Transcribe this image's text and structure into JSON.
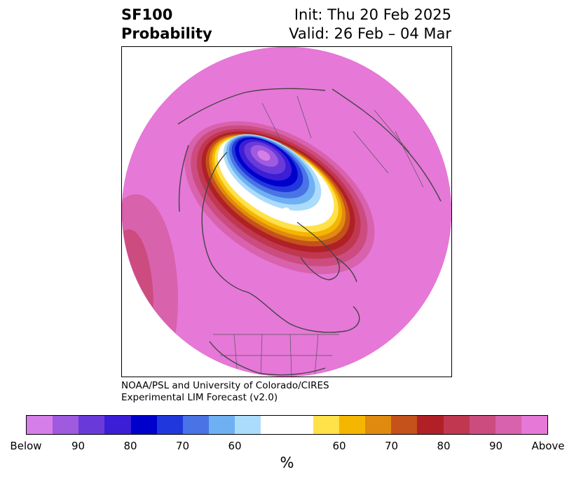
{
  "title": {
    "variable": "SF100",
    "subtitle": "Probability",
    "init": "Init: Thu 20 Feb 2025",
    "valid": "Valid: 26 Feb – 04 Mar"
  },
  "credit": {
    "line1": "NOAA/PSL and University of Colorado/CIRES",
    "line2": "Experimental LIM Forecast (v2.0)"
  },
  "colorbar": {
    "units": "%",
    "colors": [
      "#d67ee8",
      "#9f5ae0",
      "#6a3ad9",
      "#3b1ed6",
      "#0000cc",
      "#2038db",
      "#4a74e6",
      "#6fb0f2",
      "#acdcfb",
      "#ffffff",
      "#ffffff",
      "#ffe14a",
      "#f4b600",
      "#e08a10",
      "#c4521a",
      "#b02026",
      "#c03850",
      "#cc4c80",
      "#d962ad",
      "#e678d8"
    ],
    "tick_labels": [
      "Below",
      "90",
      "80",
      "70",
      "60",
      "60",
      "70",
      "80",
      "90",
      "Above"
    ]
  },
  "map": {
    "projection": "polar stereographic",
    "fill_color": "#e678d8",
    "features": [
      "coastlines",
      "country borders",
      "state borders"
    ]
  }
}
